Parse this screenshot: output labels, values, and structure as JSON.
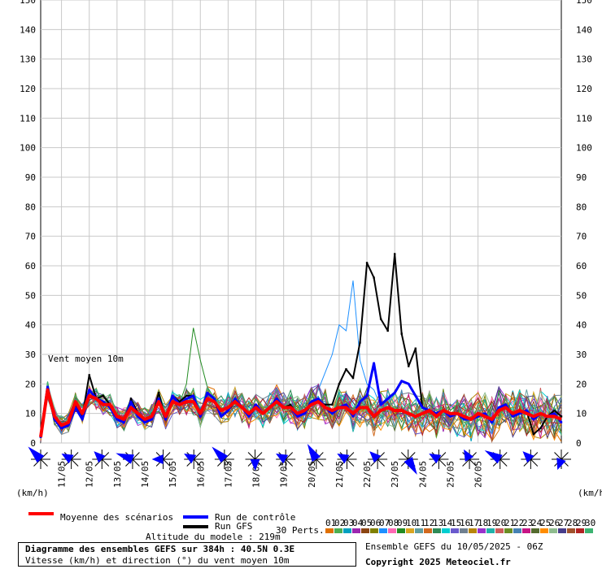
{
  "chart_data": {
    "type": "line",
    "annotation": "Vent moyen 10m",
    "unit_label": "(km/h)",
    "ylim": [
      0,
      150
    ],
    "y_ticks": [
      0,
      10,
      20,
      30,
      40,
      50,
      60,
      70,
      80,
      90,
      100,
      110,
      120,
      130,
      140,
      150
    ],
    "x_ticks": [
      "11/05",
      "12/05",
      "13/05",
      "14/05",
      "15/05",
      "16/05",
      "17/05",
      "18/05",
      "19/05",
      "20/05",
      "21/05",
      "22/05",
      "23/05",
      "24/05",
      "25/05",
      "26/05"
    ],
    "x_step_hours": 6,
    "x_start_hours": 0,
    "x_tick_start_hours": 18,
    "grid": true,
    "series": [
      {
        "name": "Moyenne des scénarios",
        "color": "#ff0000",
        "values": [
          2,
          18,
          9,
          6,
          7,
          14,
          10,
          16,
          15,
          13,
          13,
          9,
          8,
          12,
          10,
          8,
          9,
          14,
          9,
          14,
          13,
          14,
          14,
          10,
          15,
          14,
          11,
          12,
          14,
          12,
          10,
          12,
          10,
          12,
          14,
          12,
          12,
          10,
          11,
          13,
          14,
          12,
          11,
          12,
          12,
          10,
          12,
          12,
          9,
          11,
          12,
          11,
          11,
          10,
          9,
          10,
          11,
          9,
          11,
          10,
          10,
          9,
          8,
          10,
          9,
          8,
          11,
          12,
          10,
          11,
          10,
          9,
          10,
          9,
          9,
          8
        ]
      },
      {
        "name": "Run de contrôle",
        "color": "#0000ff",
        "values": [
          2,
          19,
          8,
          5,
          6,
          12,
          8,
          18,
          15,
          14,
          12,
          8,
          7,
          14,
          9,
          7,
          8,
          15,
          8,
          16,
          13,
          15,
          16,
          9,
          17,
          15,
          9,
          11,
          15,
          12,
          9,
          13,
          10,
          12,
          15,
          12,
          12,
          9,
          10,
          14,
          15,
          12,
          10,
          12,
          13,
          9,
          14,
          16,
          27,
          13,
          15,
          17,
          21,
          20,
          16,
          12,
          11,
          10,
          11,
          9,
          10,
          8,
          8,
          9,
          10,
          7,
          12,
          13,
          9,
          10,
          11,
          8,
          10,
          9,
          10,
          7
        ]
      },
      {
        "name": "Run GFS",
        "color": "#000000",
        "values": [
          2,
          19,
          8,
          5,
          7,
          13,
          9,
          23,
          15,
          16,
          13,
          8,
          7,
          15,
          10,
          7,
          8,
          17,
          8,
          16,
          14,
          16,
          16,
          9,
          15,
          14,
          9,
          11,
          14,
          12,
          9,
          12,
          10,
          12,
          14,
          12,
          13,
          9,
          10,
          13,
          14,
          13,
          13,
          20,
          25,
          22,
          34,
          61,
          56,
          42,
          38,
          64,
          37,
          26,
          32,
          12,
          11,
          10,
          11,
          9,
          10,
          8,
          8,
          9,
          10,
          7,
          12,
          13,
          9,
          10,
          11,
          3,
          5,
          9,
          11,
          9
        ]
      }
    ],
    "ensemble_count": 30,
    "wind_directions_deg": [
      315,
      300,
      315,
      290,
      270,
      300,
      315,
      180,
      300,
      330,
      300,
      315,
      150,
      300,
      330,
      300,
      315,
      200
    ]
  },
  "legend": {
    "mean": "Moyenne des scénarios",
    "control": "Run de contrôle",
    "gfs": "Run GFS",
    "perts": "30 Perts.",
    "altitude": "Altitude du modele : 219m",
    "pert_numbers": [
      "01",
      "02",
      "03",
      "04",
      "05",
      "06",
      "07",
      "08",
      "09",
      "10",
      "11",
      "12",
      "13",
      "14",
      "15",
      "16",
      "17",
      "18",
      "19",
      "20",
      "21",
      "22",
      "23",
      "24",
      "25",
      "26",
      "27",
      "28",
      "29",
      "30"
    ],
    "pert_colors": [
      "#e07000",
      "#4caf50",
      "#00a0c0",
      "#9c27b0",
      "#8b4513",
      "#808000",
      "#1e90ff",
      "#ff69b4",
      "#228b22",
      "#daa520",
      "#5f9ea0",
      "#d2691e",
      "#2e8b57",
      "#00ced1",
      "#6a5acd",
      "#708090",
      "#b8860b",
      "#9932cc",
      "#20b2aa",
      "#cd5c5c",
      "#6b8e23",
      "#4682b4",
      "#c71585",
      "#556b2f",
      "#ff8c00",
      "#8fbc8f",
      "#483d8b",
      "#a0522d",
      "#b22222",
      "#3cb371"
    ]
  },
  "info": {
    "title": "Diagramme des ensembles GEFS sur 384h : 40.5N 0.3E",
    "subtitle": "Vitesse (km/h) et direction (°) du vent moyen 10m",
    "run": "Ensemble GEFS du 10/05/2025 - 06Z",
    "copyright": "Copyright 2025 Meteociel.fr"
  }
}
